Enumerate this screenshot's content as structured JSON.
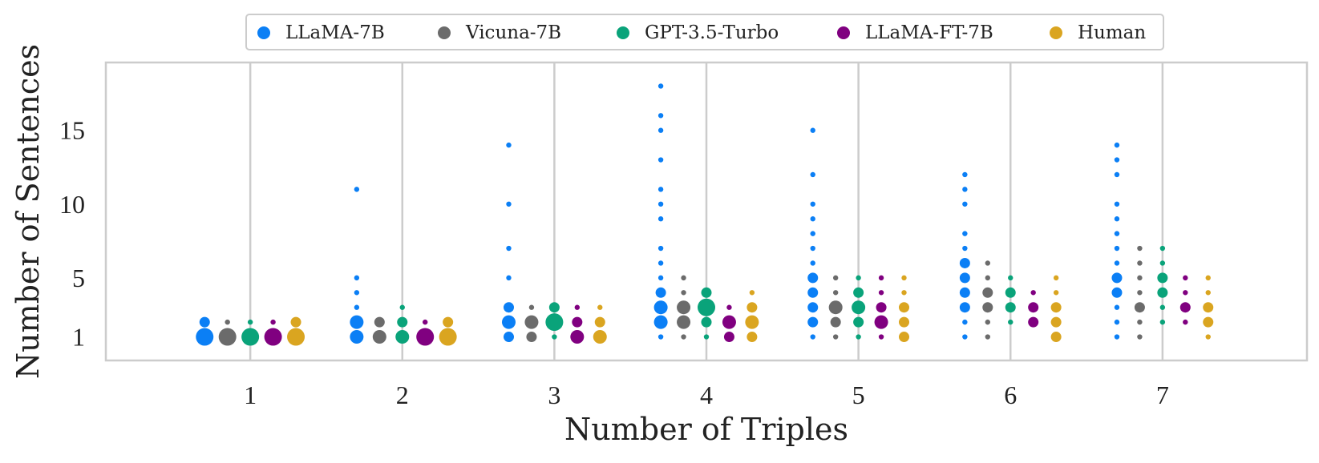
{
  "chart_data": {
    "type": "scatter",
    "title": "",
    "xlabel": "Number of Triples",
    "ylabel": "Number of Sentences",
    "x_categories": [
      1,
      2,
      3,
      4,
      5,
      6,
      7
    ],
    "xlim": [
      0.05,
      7.95
    ],
    "ylim": [
      -0.6,
      19.6
    ],
    "yticks": [
      1,
      5,
      10,
      15
    ],
    "grid": "vertical",
    "legend": {
      "placement": "top-center",
      "orientation": "horizontal"
    },
    "size_encoding": "marker size reflects relative frequency of the sentence count",
    "series": [
      {
        "name": "LLaMA-7B",
        "color": "#0b7ff5",
        "points": [
          {
            "x": 1,
            "y": 1,
            "size": "L"
          },
          {
            "x": 1,
            "y": 2,
            "size": "S"
          },
          {
            "x": 2,
            "y": 1,
            "size": "M"
          },
          {
            "x": 2,
            "y": 2,
            "size": "M"
          },
          {
            "x": 2,
            "y": 3,
            "size": "XS"
          },
          {
            "x": 2,
            "y": 4,
            "size": "XS"
          },
          {
            "x": 2,
            "y": 5,
            "size": "XS"
          },
          {
            "x": 2,
            "y": 11,
            "size": "XS"
          },
          {
            "x": 3,
            "y": 1,
            "size": "S"
          },
          {
            "x": 3,
            "y": 2,
            "size": "M"
          },
          {
            "x": 3,
            "y": 3,
            "size": "S"
          },
          {
            "x": 3,
            "y": 5,
            "size": "XS"
          },
          {
            "x": 3,
            "y": 7,
            "size": "XS"
          },
          {
            "x": 3,
            "y": 10,
            "size": "XS"
          },
          {
            "x": 3,
            "y": 14,
            "size": "XS"
          },
          {
            "x": 4,
            "y": 1,
            "size": "XS"
          },
          {
            "x": 4,
            "y": 2,
            "size": "M"
          },
          {
            "x": 4,
            "y": 3,
            "size": "M"
          },
          {
            "x": 4,
            "y": 4,
            "size": "S"
          },
          {
            "x": 4,
            "y": 5,
            "size": "XS"
          },
          {
            "x": 4,
            "y": 6,
            "size": "XS"
          },
          {
            "x": 4,
            "y": 7,
            "size": "XS"
          },
          {
            "x": 4,
            "y": 9,
            "size": "XS"
          },
          {
            "x": 4,
            "y": 10,
            "size": "XS"
          },
          {
            "x": 4,
            "y": 11,
            "size": "XS"
          },
          {
            "x": 4,
            "y": 13,
            "size": "XS"
          },
          {
            "x": 4,
            "y": 15,
            "size": "XS"
          },
          {
            "x": 4,
            "y": 16,
            "size": "XS"
          },
          {
            "x": 4,
            "y": 18,
            "size": "XS"
          },
          {
            "x": 5,
            "y": 1,
            "size": "XS"
          },
          {
            "x": 5,
            "y": 2,
            "size": "S"
          },
          {
            "x": 5,
            "y": 3,
            "size": "S"
          },
          {
            "x": 5,
            "y": 4,
            "size": "S"
          },
          {
            "x": 5,
            "y": 5,
            "size": "S"
          },
          {
            "x": 5,
            "y": 6,
            "size": "XS"
          },
          {
            "x": 5,
            "y": 7,
            "size": "XS"
          },
          {
            "x": 5,
            "y": 8,
            "size": "XS"
          },
          {
            "x": 5,
            "y": 9,
            "size": "XS"
          },
          {
            "x": 5,
            "y": 10,
            "size": "XS"
          },
          {
            "x": 5,
            "y": 12,
            "size": "XS"
          },
          {
            "x": 5,
            "y": 15,
            "size": "XS"
          },
          {
            "x": 6,
            "y": 1,
            "size": "XS"
          },
          {
            "x": 6,
            "y": 2,
            "size": "XS"
          },
          {
            "x": 6,
            "y": 3,
            "size": "S"
          },
          {
            "x": 6,
            "y": 4,
            "size": "S"
          },
          {
            "x": 6,
            "y": 5,
            "size": "S"
          },
          {
            "x": 6,
            "y": 6,
            "size": "S"
          },
          {
            "x": 6,
            "y": 7,
            "size": "XS"
          },
          {
            "x": 6,
            "y": 8,
            "size": "XS"
          },
          {
            "x": 6,
            "y": 10,
            "size": "XS"
          },
          {
            "x": 6,
            "y": 11,
            "size": "XS"
          },
          {
            "x": 6,
            "y": 12,
            "size": "XS"
          },
          {
            "x": 7,
            "y": 1,
            "size": "XS"
          },
          {
            "x": 7,
            "y": 2,
            "size": "XS"
          },
          {
            "x": 7,
            "y": 3,
            "size": "XS"
          },
          {
            "x": 7,
            "y": 4,
            "size": "S"
          },
          {
            "x": 7,
            "y": 5,
            "size": "S"
          },
          {
            "x": 7,
            "y": 6,
            "size": "XS"
          },
          {
            "x": 7,
            "y": 7,
            "size": "XS"
          },
          {
            "x": 7,
            "y": 8,
            "size": "XS"
          },
          {
            "x": 7,
            "y": 9,
            "size": "XS"
          },
          {
            "x": 7,
            "y": 10,
            "size": "XS"
          },
          {
            "x": 7,
            "y": 12,
            "size": "XS"
          },
          {
            "x": 7,
            "y": 13,
            "size": "XS"
          },
          {
            "x": 7,
            "y": 14,
            "size": "XS"
          }
        ]
      },
      {
        "name": "Vicuna-7B",
        "color": "#6b6b6b",
        "points": [
          {
            "x": 1,
            "y": 1,
            "size": "L"
          },
          {
            "x": 1,
            "y": 2,
            "size": "XS"
          },
          {
            "x": 2,
            "y": 1,
            "size": "M"
          },
          {
            "x": 2,
            "y": 2,
            "size": "S"
          },
          {
            "x": 3,
            "y": 1,
            "size": "S"
          },
          {
            "x": 3,
            "y": 2,
            "size": "M"
          },
          {
            "x": 3,
            "y": 3,
            "size": "XS"
          },
          {
            "x": 4,
            "y": 1,
            "size": "XS"
          },
          {
            "x": 4,
            "y": 2,
            "size": "M"
          },
          {
            "x": 4,
            "y": 3,
            "size": "M"
          },
          {
            "x": 4,
            "y": 4,
            "size": "XS"
          },
          {
            "x": 4,
            "y": 5,
            "size": "XS"
          },
          {
            "x": 5,
            "y": 1,
            "size": "XS"
          },
          {
            "x": 5,
            "y": 2,
            "size": "S"
          },
          {
            "x": 5,
            "y": 3,
            "size": "M"
          },
          {
            "x": 5,
            "y": 4,
            "size": "XS"
          },
          {
            "x": 5,
            "y": 5,
            "size": "XS"
          },
          {
            "x": 6,
            "y": 1,
            "size": "XS"
          },
          {
            "x": 6,
            "y": 2,
            "size": "XS"
          },
          {
            "x": 6,
            "y": 3,
            "size": "S"
          },
          {
            "x": 6,
            "y": 4,
            "size": "S"
          },
          {
            "x": 6,
            "y": 5,
            "size": "XS"
          },
          {
            "x": 6,
            "y": 6,
            "size": "XS"
          },
          {
            "x": 7,
            "y": 1,
            "size": "XS"
          },
          {
            "x": 7,
            "y": 2,
            "size": "XS"
          },
          {
            "x": 7,
            "y": 3,
            "size": "S"
          },
          {
            "x": 7,
            "y": 4,
            "size": "XS"
          },
          {
            "x": 7,
            "y": 5,
            "size": "XS"
          },
          {
            "x": 7,
            "y": 6,
            "size": "XS"
          },
          {
            "x": 7,
            "y": 7,
            "size": "XS"
          }
        ]
      },
      {
        "name": "GPT-3.5-Turbo",
        "color": "#0aa37a",
        "points": [
          {
            "x": 1,
            "y": 1,
            "size": "L"
          },
          {
            "x": 1,
            "y": 2,
            "size": "XS"
          },
          {
            "x": 2,
            "y": 1,
            "size": "M"
          },
          {
            "x": 2,
            "y": 2,
            "size": "S"
          },
          {
            "x": 2,
            "y": 3,
            "size": "XS"
          },
          {
            "x": 3,
            "y": 1,
            "size": "XS"
          },
          {
            "x": 3,
            "y": 2,
            "size": "L"
          },
          {
            "x": 3,
            "y": 3,
            "size": "S"
          },
          {
            "x": 4,
            "y": 1,
            "size": "XS"
          },
          {
            "x": 4,
            "y": 2,
            "size": "S"
          },
          {
            "x": 4,
            "y": 3,
            "size": "L"
          },
          {
            "x": 4,
            "y": 4,
            "size": "S"
          },
          {
            "x": 5,
            "y": 1,
            "size": "XS"
          },
          {
            "x": 5,
            "y": 2,
            "size": "S"
          },
          {
            "x": 5,
            "y": 3,
            "size": "M"
          },
          {
            "x": 5,
            "y": 4,
            "size": "S"
          },
          {
            "x": 5,
            "y": 5,
            "size": "XS"
          },
          {
            "x": 6,
            "y": 2,
            "size": "XS"
          },
          {
            "x": 6,
            "y": 3,
            "size": "S"
          },
          {
            "x": 6,
            "y": 4,
            "size": "S"
          },
          {
            "x": 6,
            "y": 5,
            "size": "XS"
          },
          {
            "x": 7,
            "y": 2,
            "size": "XS"
          },
          {
            "x": 7,
            "y": 3,
            "size": "XS"
          },
          {
            "x": 7,
            "y": 4,
            "size": "S"
          },
          {
            "x": 7,
            "y": 5,
            "size": "S"
          },
          {
            "x": 7,
            "y": 6,
            "size": "XS"
          },
          {
            "x": 7,
            "y": 7,
            "size": "XS"
          }
        ]
      },
      {
        "name": "LLaMA-FT-7B",
        "color": "#800080",
        "points": [
          {
            "x": 1,
            "y": 1,
            "size": "L"
          },
          {
            "x": 1,
            "y": 2,
            "size": "XS"
          },
          {
            "x": 2,
            "y": 1,
            "size": "L"
          },
          {
            "x": 2,
            "y": 2,
            "size": "XS"
          },
          {
            "x": 3,
            "y": 1,
            "size": "M"
          },
          {
            "x": 3,
            "y": 2,
            "size": "S"
          },
          {
            "x": 3,
            "y": 3,
            "size": "XS"
          },
          {
            "x": 4,
            "y": 1,
            "size": "S"
          },
          {
            "x": 4,
            "y": 2,
            "size": "M"
          },
          {
            "x": 4,
            "y": 3,
            "size": "XS"
          },
          {
            "x": 5,
            "y": 1,
            "size": "XS"
          },
          {
            "x": 5,
            "y": 2,
            "size": "M"
          },
          {
            "x": 5,
            "y": 3,
            "size": "S"
          },
          {
            "x": 5,
            "y": 4,
            "size": "XS"
          },
          {
            "x": 5,
            "y": 5,
            "size": "XS"
          },
          {
            "x": 6,
            "y": 2,
            "size": "S"
          },
          {
            "x": 6,
            "y": 3,
            "size": "S"
          },
          {
            "x": 6,
            "y": 4,
            "size": "XS"
          },
          {
            "x": 7,
            "y": 2,
            "size": "XS"
          },
          {
            "x": 7,
            "y": 3,
            "size": "S"
          },
          {
            "x": 7,
            "y": 4,
            "size": "XS"
          },
          {
            "x": 7,
            "y": 5,
            "size": "XS"
          }
        ]
      },
      {
        "name": "Human",
        "color": "#daa520",
        "points": [
          {
            "x": 1,
            "y": 1,
            "size": "L"
          },
          {
            "x": 1,
            "y": 2,
            "size": "S"
          },
          {
            "x": 2,
            "y": 1,
            "size": "L"
          },
          {
            "x": 2,
            "y": 2,
            "size": "S"
          },
          {
            "x": 3,
            "y": 1,
            "size": "M"
          },
          {
            "x": 3,
            "y": 2,
            "size": "S"
          },
          {
            "x": 3,
            "y": 3,
            "size": "XS"
          },
          {
            "x": 4,
            "y": 1,
            "size": "S"
          },
          {
            "x": 4,
            "y": 2,
            "size": "M"
          },
          {
            "x": 4,
            "y": 3,
            "size": "S"
          },
          {
            "x": 4,
            "y": 4,
            "size": "XS"
          },
          {
            "x": 5,
            "y": 1,
            "size": "S"
          },
          {
            "x": 5,
            "y": 2,
            "size": "S"
          },
          {
            "x": 5,
            "y": 3,
            "size": "S"
          },
          {
            "x": 5,
            "y": 4,
            "size": "XS"
          },
          {
            "x": 5,
            "y": 5,
            "size": "XS"
          },
          {
            "x": 6,
            "y": 1,
            "size": "S"
          },
          {
            "x": 6,
            "y": 2,
            "size": "S"
          },
          {
            "x": 6,
            "y": 3,
            "size": "S"
          },
          {
            "x": 6,
            "y": 4,
            "size": "XS"
          },
          {
            "x": 6,
            "y": 5,
            "size": "XS"
          },
          {
            "x": 7,
            "y": 1,
            "size": "XS"
          },
          {
            "x": 7,
            "y": 2,
            "size": "S"
          },
          {
            "x": 7,
            "y": 3,
            "size": "S"
          },
          {
            "x": 7,
            "y": 4,
            "size": "XS"
          },
          {
            "x": 7,
            "y": 5,
            "size": "XS"
          }
        ]
      }
    ]
  }
}
